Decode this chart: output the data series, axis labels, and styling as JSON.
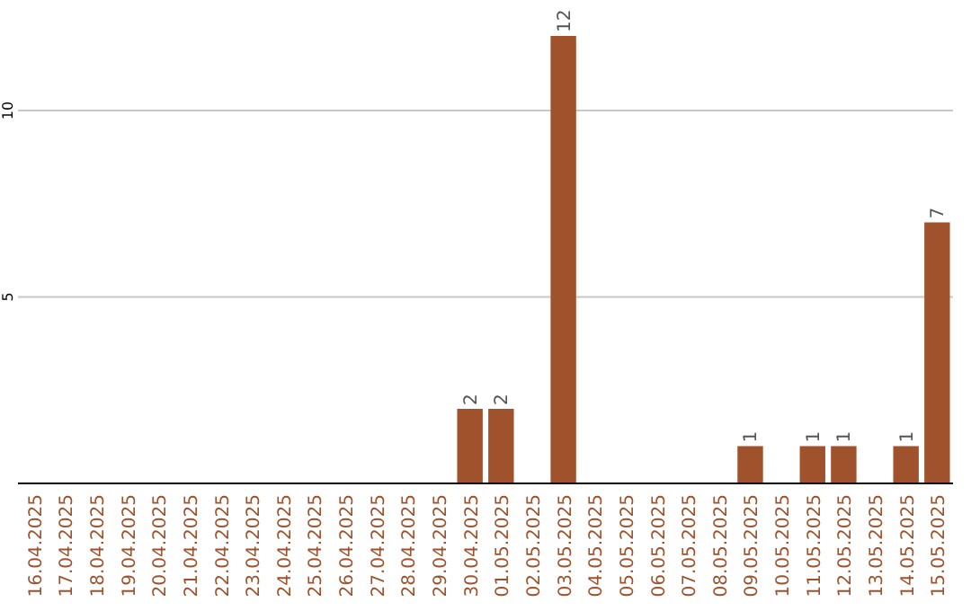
{
  "chart_data": {
    "type": "bar",
    "categories": [
      "16.04.2025",
      "17.04.2025",
      "18.04.2025",
      "19.04.2025",
      "20.04.2025",
      "21.04.2025",
      "22.04.2025",
      "23.04.2025",
      "24.04.2025",
      "25.04.2025",
      "26.04.2025",
      "27.04.2025",
      "28.04.2025",
      "29.04.2025",
      "30.04.2025",
      "01.05.2025",
      "02.05.2025",
      "03.05.2025",
      "04.05.2025",
      "05.05.2025",
      "06.05.2025",
      "07.05.2025",
      "08.05.2025",
      "09.05.2025",
      "10.05.2025",
      "11.05.2025",
      "12.05.2025",
      "13.05.2025",
      "14.05.2025",
      "15.05.2025"
    ],
    "values": [
      0,
      0,
      0,
      0,
      0,
      0,
      0,
      0,
      0,
      0,
      0,
      0,
      0,
      0,
      2,
      2,
      0,
      12,
      0,
      0,
      0,
      0,
      0,
      1,
      0,
      1,
      1,
      0,
      1,
      7
    ],
    "value_labels": [
      null,
      null,
      null,
      null,
      null,
      null,
      null,
      null,
      null,
      null,
      null,
      null,
      null,
      null,
      "2",
      "2",
      null,
      "12",
      null,
      null,
      null,
      null,
      null,
      "1",
      null,
      "1",
      "1",
      null,
      "1",
      "7"
    ],
    "color": "#a0522d",
    "ylim": [
      0,
      12
    ],
    "yticks": [
      5,
      10
    ],
    "grid": "y"
  }
}
